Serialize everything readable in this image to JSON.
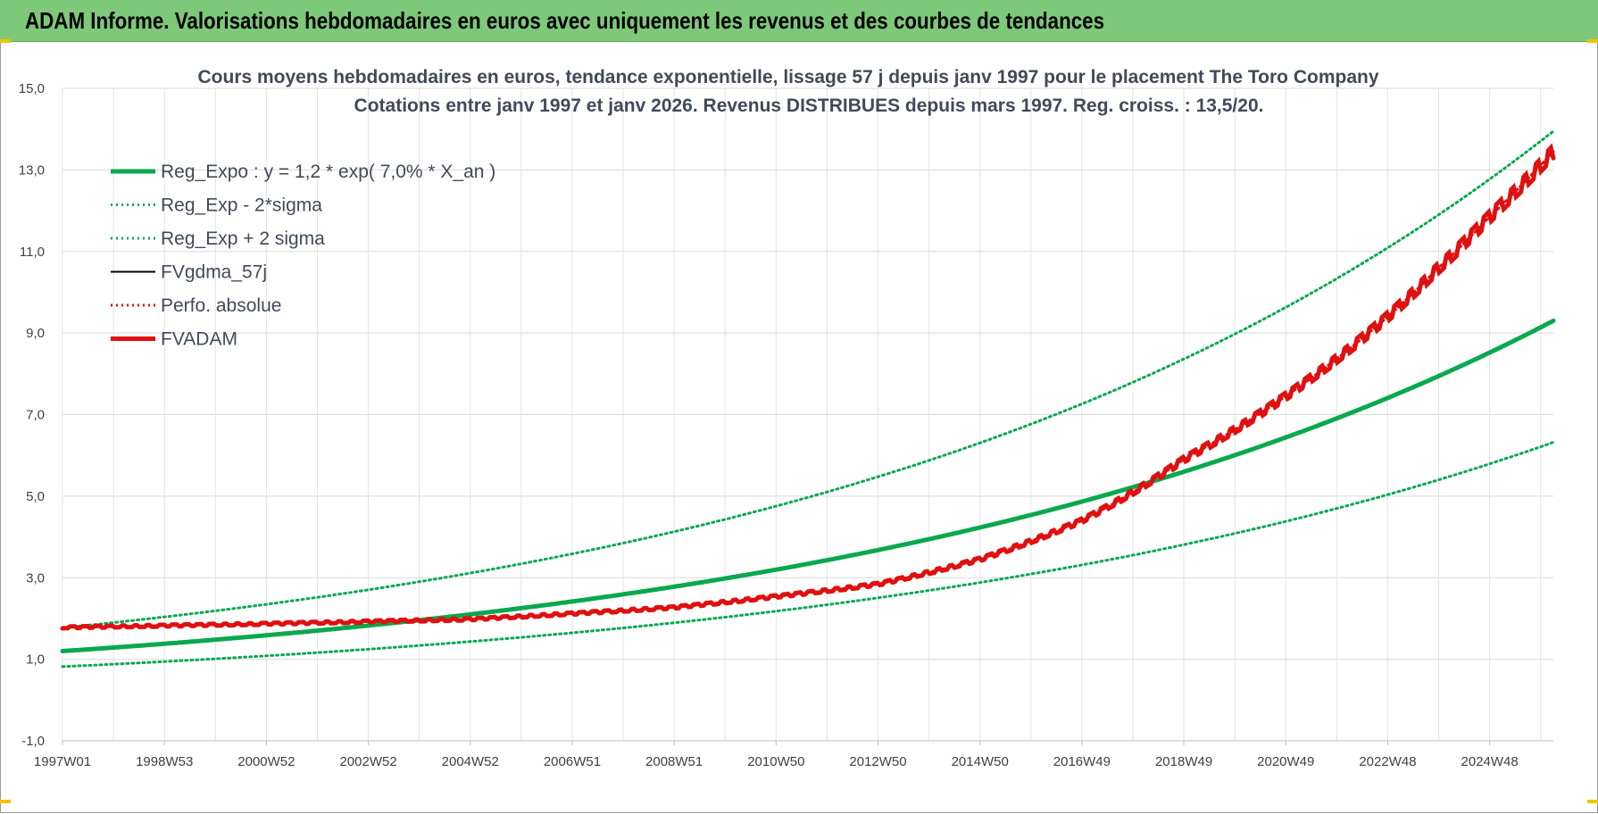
{
  "header": {
    "title": "ADAM Informe. Valorisations hebdomadaires en euros avec uniquement les revenus et des courbes de tendances"
  },
  "chart_data": {
    "type": "line",
    "title": "Cours moyens hebdomadaires en euros, tendance exponentielle, lissage 57 j depuis janv 1997  pour le placement The Toro Company",
    "subtitle": "Cotations entre janv 1997 et janv 2026. Revenus DISTRIBUES depuis mars 1997. Reg. croiss. : 13,5/20.",
    "xlabel": "",
    "ylabel": "",
    "x_ticks": [
      "1997W01",
      "1998W53",
      "2000W52",
      "2002W52",
      "2004W52",
      "2006W51",
      "2008W51",
      "2010W50",
      "2012W50",
      "2014W50",
      "2016W49",
      "2018W49",
      "2020W49",
      "2022W48",
      "2024W48"
    ],
    "x_tick_years": [
      1997.0,
      1999.0,
      2001.0,
      2003.0,
      2005.0,
      2007.0,
      2009.0,
      2011.0,
      2013.0,
      2015.0,
      2017.0,
      2019.0,
      2021.0,
      2023.0,
      2025.0
    ],
    "x_range": [
      1997.0,
      2026.25
    ],
    "ylim": [
      -1.0,
      15.0
    ],
    "y_ticks": [
      -1.0,
      1.0,
      3.0,
      5.0,
      7.0,
      9.0,
      11.0,
      13.0,
      15.0
    ],
    "y_tick_labels": [
      "-1,0",
      "1,0",
      "3,0",
      "5,0",
      "7,0",
      "9,0",
      "11,0",
      "13,0",
      "15,0"
    ],
    "grid": true,
    "legend_position": "top-left",
    "series": [
      {
        "name": "Reg_Expo : y = 1,2 * exp( 7,0% *  X_an )",
        "color": "#0aa84f",
        "style": "solid-thick",
        "x": [
          1997,
          1999,
          2001,
          2003,
          2005,
          2007,
          2009,
          2011,
          2013,
          2015,
          2017,
          2019,
          2021,
          2023,
          2025,
          2026.25
        ],
        "y": [
          1.2,
          1.38,
          1.59,
          1.82,
          2.1,
          2.41,
          2.78,
          3.19,
          3.67,
          4.22,
          4.86,
          5.59,
          6.43,
          7.39,
          8.5,
          9.3
        ]
      },
      {
        "name": "Reg_Exp - 2*sigma",
        "color": "#0aa84f",
        "style": "dotted",
        "x": [
          1997,
          1999,
          2001,
          2003,
          2005,
          2007,
          2009,
          2011,
          2013,
          2015,
          2017,
          2019,
          2021,
          2023,
          2025,
          2026.25
        ],
        "y": [
          0.82,
          0.94,
          1.08,
          1.24,
          1.43,
          1.64,
          1.89,
          2.17,
          2.5,
          2.87,
          3.3,
          3.8,
          4.37,
          5.03,
          5.78,
          6.32
        ]
      },
      {
        "name": "Reg_Exp + 2 sigma",
        "color": "#0aa84f",
        "style": "dotted",
        "x": [
          1997,
          1999,
          2001,
          2003,
          2005,
          2007,
          2009,
          2011,
          2013,
          2015,
          2017,
          2019,
          2021,
          2023,
          2025,
          2026.25
        ],
        "y": [
          1.77,
          2.03,
          2.34,
          2.68,
          3.09,
          3.55,
          4.08,
          4.7,
          5.4,
          6.21,
          7.14,
          8.22,
          9.45,
          10.87,
          12.5,
          13.95
        ]
      },
      {
        "name": "FVgdma_57j",
        "color": "#000000",
        "style": "solid",
        "x": [
          1997,
          2001,
          2005,
          2009,
          2013,
          2015,
          2017,
          2019,
          2021,
          2023,
          2024,
          2025,
          2026.25
        ],
        "y": [
          1.78,
          1.87,
          1.98,
          2.27,
          2.84,
          3.45,
          4.4,
          5.9,
          7.45,
          9.4,
          10.6,
          11.85,
          13.45
        ]
      },
      {
        "name": "Perfo. absolue",
        "color": "#e01010",
        "style": "dotted",
        "x": [
          1997,
          2001,
          2005,
          2009,
          2013,
          2015,
          2017,
          2019,
          2021,
          2023,
          2024,
          2025,
          2026.25
        ],
        "y": [
          1.78,
          1.87,
          1.98,
          2.27,
          2.84,
          3.45,
          4.4,
          5.9,
          7.45,
          9.4,
          10.6,
          11.85,
          13.45
        ]
      },
      {
        "name": "FVADAM",
        "color": "#e01010",
        "style": "solid-thick",
        "x": [
          1997,
          2001,
          2005,
          2009,
          2013,
          2015,
          2017,
          2019,
          2021,
          2023,
          2024,
          2025,
          2026.25
        ],
        "y": [
          1.78,
          1.87,
          1.98,
          2.27,
          2.84,
          3.45,
          4.4,
          5.9,
          7.45,
          9.4,
          10.6,
          11.85,
          13.45
        ]
      }
    ]
  }
}
